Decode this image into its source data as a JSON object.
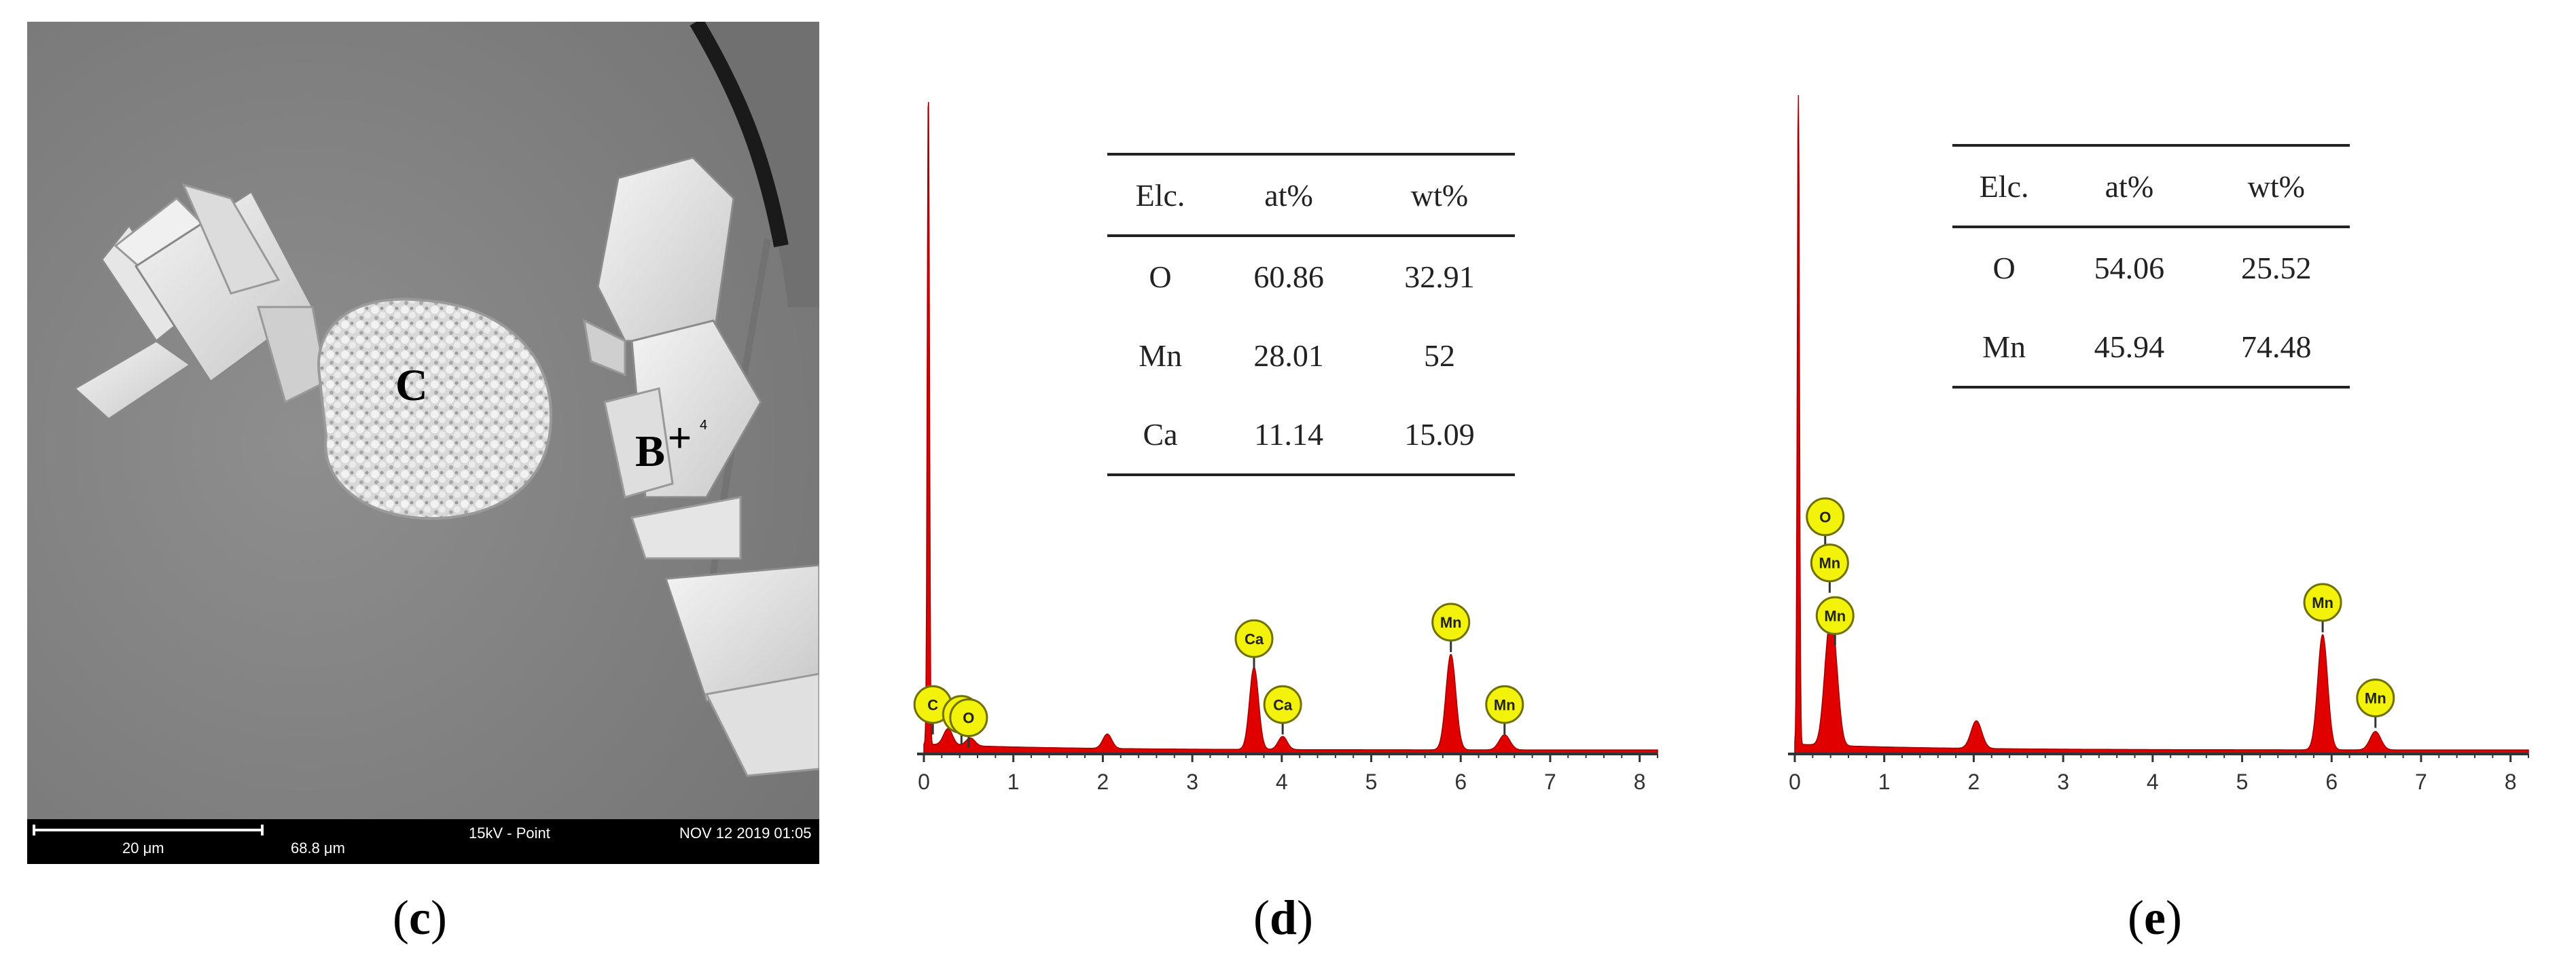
{
  "panel_c": {
    "caption_letter": "c",
    "point_c_label": "C",
    "point_b_label": "B",
    "point_b_marker": "+",
    "point_b_index": "4",
    "scale_bar": "20 μm",
    "field_width": "68.8 μm",
    "kv_mode": "15kV - Point",
    "timestamp": "NOV 12 2019 01:05"
  },
  "chart_data": [
    {
      "type": "line",
      "panel": "d",
      "caption_letter": "d",
      "title": "",
      "xlabel": "",
      "ylabel": "",
      "xlim": [
        0,
        8.2
      ],
      "ylim": [
        0,
        100
      ],
      "x_ticks": [
        "0",
        "1",
        "2",
        "3",
        "4",
        "5",
        "6",
        "7",
        "8"
      ],
      "series": [
        {
          "peaks": [
            {
              "x": 0.05,
              "h": 100,
              "w": 0.012
            },
            {
              "x": 0.27,
              "h": 2.5,
              "w": 0.05
            },
            {
              "x": 0.52,
              "h": 1.2,
              "w": 0.05
            },
            {
              "x": 2.05,
              "h": 2.2,
              "w": 0.05
            },
            {
              "x": 3.69,
              "h": 12.5,
              "w": 0.05
            },
            {
              "x": 4.01,
              "h": 2.0,
              "w": 0.05
            },
            {
              "x": 5.89,
              "h": 14.5,
              "w": 0.055
            },
            {
              "x": 6.49,
              "h": 2.3,
              "w": 0.06
            }
          ]
        }
      ],
      "annotations": [
        {
          "text": "C",
          "x": 0.1,
          "y": 7.5
        },
        {
          "text": "O",
          "x": 0.42,
          "y": 6.0
        },
        {
          "text": "O",
          "x": 0.5,
          "y": 5.5
        },
        {
          "text": "Ca",
          "x": 3.69,
          "y": 17.5
        },
        {
          "text": "Ca",
          "x": 4.01,
          "y": 7.5
        },
        {
          "text": "Mn",
          "x": 5.89,
          "y": 20
        },
        {
          "text": "Mn",
          "x": 6.49,
          "y": 7.5
        }
      ],
      "table": {
        "headers": [
          "Elc.",
          "at%",
          "wt%"
        ],
        "rows": [
          [
            "O",
            "60.86",
            "32.91"
          ],
          [
            "Mn",
            "28.01",
            "52"
          ],
          [
            "Ca",
            "11.14",
            "15.09"
          ]
        ]
      }
    },
    {
      "type": "line",
      "panel": "e",
      "caption_letter": "e",
      "title": "",
      "xlabel": "",
      "ylabel": "",
      "xlim": [
        0,
        8.2
      ],
      "ylim": [
        0,
        100
      ],
      "x_ticks": [
        "0",
        "1",
        "2",
        "3",
        "4",
        "5",
        "6",
        "7",
        "8"
      ],
      "series": [
        {
          "peaks": [
            {
              "x": 0.04,
              "h": 100,
              "w": 0.012
            },
            {
              "x": 0.38,
              "h": 15,
              "w": 0.055
            },
            {
              "x": 0.45,
              "h": 9,
              "w": 0.05
            },
            {
              "x": 2.03,
              "h": 4.2,
              "w": 0.06
            },
            {
              "x": 5.9,
              "h": 17.5,
              "w": 0.055
            },
            {
              "x": 6.49,
              "h": 2.8,
              "w": 0.06
            }
          ]
        }
      ],
      "annotations": [
        {
          "text": "O",
          "x": 0.34,
          "y": 36
        },
        {
          "text": "Mn",
          "x": 0.39,
          "y": 29
        },
        {
          "text": "Mn",
          "x": 0.45,
          "y": 21
        },
        {
          "text": "Mn",
          "x": 5.9,
          "y": 23
        },
        {
          "text": "Mn",
          "x": 6.49,
          "y": 8.5
        }
      ],
      "table": {
        "headers": [
          "Elc.",
          "at%",
          "wt%"
        ],
        "rows": [
          [
            "O",
            "54.06",
            "25.52"
          ],
          [
            "Mn",
            "45.94",
            "74.48"
          ]
        ]
      }
    }
  ],
  "colors": {
    "spectrum_fill": "#e00000",
    "label_fill": "#f2f20a",
    "label_stroke": "#707000",
    "sem_background": "#838383",
    "axis": "#333333"
  }
}
